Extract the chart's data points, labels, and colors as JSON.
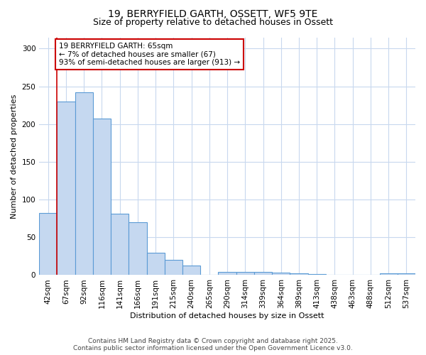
{
  "title1": "19, BERRYFIELD GARTH, OSSETT, WF5 9TE",
  "title2": "Size of property relative to detached houses in Ossett",
  "xlabel": "Distribution of detached houses by size in Ossett",
  "ylabel": "Number of detached properties",
  "categories": [
    "42sqm",
    "67sqm",
    "92sqm",
    "116sqm",
    "141sqm",
    "166sqm",
    "191sqm",
    "215sqm",
    "240sqm",
    "265sqm",
    "290sqm",
    "314sqm",
    "339sqm",
    "364sqm",
    "389sqm",
    "413sqm",
    "438sqm",
    "463sqm",
    "488sqm",
    "512sqm",
    "537sqm"
  ],
  "values": [
    82,
    230,
    242,
    207,
    81,
    70,
    30,
    20,
    13,
    0,
    4,
    4,
    4,
    3,
    2,
    1,
    0,
    0,
    0,
    2,
    2
  ],
  "bar_color": "#c5d8f0",
  "bar_edge_color": "#5b9bd5",
  "highlight_index": 1,
  "highlight_color": "#cc0000",
  "ylim": [
    0,
    315
  ],
  "yticks": [
    0,
    50,
    100,
    150,
    200,
    250,
    300
  ],
  "annotation_text": "19 BERRYFIELD GARTH: 65sqm\n← 7% of detached houses are smaller (67)\n93% of semi-detached houses are larger (913) →",
  "annotation_box_color": "#ffffff",
  "annotation_box_edge_color": "#cc0000",
  "footer1": "Contains HM Land Registry data © Crown copyright and database right 2025.",
  "footer2": "Contains public sector information licensed under the Open Government Licence v3.0.",
  "grid_color": "#c8d8ee",
  "background_color": "#ffffff",
  "title_fontsize": 10,
  "subtitle_fontsize": 9,
  "axis_label_fontsize": 8,
  "tick_fontsize": 7.5,
  "annotation_fontsize": 7.5,
  "footer_fontsize": 6.5
}
